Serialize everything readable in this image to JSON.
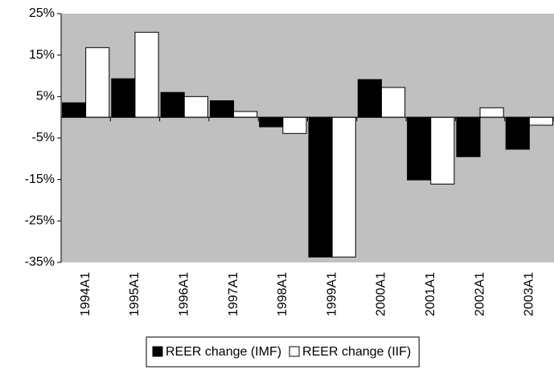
{
  "chart_data": {
    "type": "bar",
    "categories": [
      "1994A1",
      "1995A1",
      "1996A1",
      "1997A1",
      "1998A1",
      "1999A1",
      "2000A1",
      "2001A1",
      "2002A1",
      "2003A1"
    ],
    "series": [
      {
        "name": "REER change (IMF)",
        "color": "#000000",
        "values": [
          3.5,
          9.3,
          6,
          4,
          -2.3,
          -33.7,
          9.1,
          -15.1,
          -9.5,
          -7.7
        ]
      },
      {
        "name": "REER change (IIF)",
        "color": "#ffffff",
        "values": [
          16.8,
          20.5,
          5,
          1.4,
          -3.9,
          -33.7,
          7.2,
          -16.1,
          2.3,
          -1.9
        ]
      }
    ],
    "ylim": [
      -35,
      25
    ],
    "yticks": [
      {
        "value": -35,
        "label": "-35%"
      },
      {
        "value": -25,
        "label": "-25%"
      },
      {
        "value": -15,
        "label": "-15%"
      },
      {
        "value": -5,
        "label": "-5%"
      },
      {
        "value": 5,
        "label": "5%"
      },
      {
        "value": 15,
        "label": "15%"
      },
      {
        "value": 25,
        "label": "25%"
      }
    ],
    "plot_background": "#c0c0c0",
    "legend": "bottom"
  }
}
